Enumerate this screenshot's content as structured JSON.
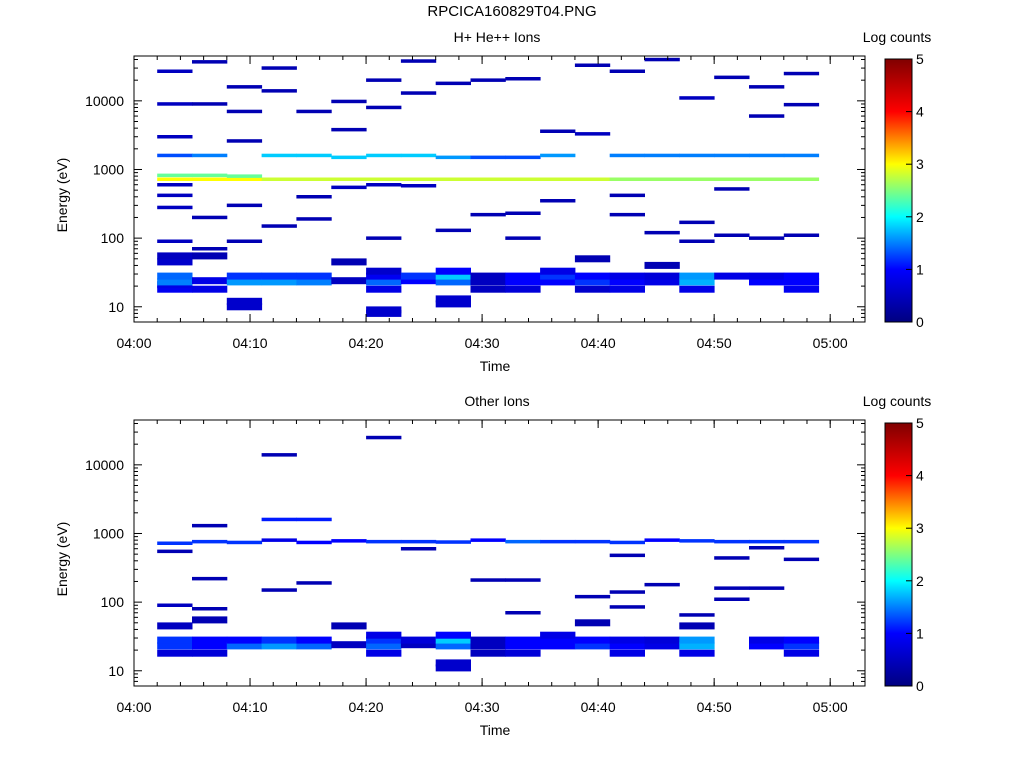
{
  "title": "RPCICA160829T04.PNG",
  "colorbar": {
    "label": "Log counts",
    "ticks": [
      "0",
      "1",
      "2",
      "3",
      "4",
      "5"
    ],
    "colors": [
      "#000080",
      "#0000ff",
      "#00ffff",
      "#ffff00",
      "#ff0000",
      "#800000"
    ]
  },
  "chart_data": [
    {
      "type": "heatmap",
      "title": "H+ He++ Ions",
      "xlabel": "Time",
      "ylabel": "Energy (eV)",
      "xticks": [
        "04:00",
        "04:10",
        "04:20",
        "04:30",
        "04:40",
        "04:50",
        "05:00"
      ],
      "xlim_minutes": [
        0,
        63
      ],
      "yticks": [
        "10",
        "100",
        "1000",
        "10000"
      ],
      "ylim": [
        6,
        45000
      ],
      "yscale": "log",
      "clim": [
        0,
        5
      ],
      "cells": [
        [
          2,
          18,
          0.9
        ],
        [
          2,
          21,
          0.8
        ],
        [
          2,
          23,
          1.5
        ],
        [
          2,
          28,
          1.4
        ],
        [
          2,
          45,
          0.6
        ],
        [
          2,
          55,
          0.5
        ],
        [
          2,
          90,
          0.5
        ],
        [
          2,
          280,
          0.5
        ],
        [
          2,
          420,
          0.5
        ],
        [
          2,
          600,
          0.5
        ],
        [
          2,
          720,
          3.0
        ],
        [
          2,
          820,
          2.4
        ],
        [
          2,
          1600,
          1.3
        ],
        [
          2,
          3000,
          0.5
        ],
        [
          2,
          9000,
          0.5
        ],
        [
          2,
          27000,
          0.5
        ],
        [
          5,
          18,
          0.8
        ],
        [
          5,
          24,
          0.8
        ],
        [
          5,
          55,
          0.4
        ],
        [
          5,
          70,
          0.4
        ],
        [
          5,
          200,
          0.4
        ],
        [
          5,
          720,
          3.0
        ],
        [
          5,
          820,
          2.4
        ],
        [
          5,
          1600,
          1.5
        ],
        [
          5,
          9000,
          0.4
        ],
        [
          5,
          37000,
          0.4
        ],
        [
          8,
          10,
          0.6
        ],
        [
          8,
          12,
          0.6
        ],
        [
          8,
          23,
          1.6
        ],
        [
          8,
          28,
          1.2
        ],
        [
          8,
          90,
          0.4
        ],
        [
          8,
          300,
          0.4
        ],
        [
          8,
          720,
          3.0
        ],
        [
          8,
          800,
          2.4
        ],
        [
          8,
          2600,
          0.4
        ],
        [
          8,
          7000,
          0.4
        ],
        [
          8,
          16000,
          0.4
        ],
        [
          11,
          23,
          1.6
        ],
        [
          11,
          28,
          1.2
        ],
        [
          11,
          150,
          0.4
        ],
        [
          11,
          720,
          2.8
        ],
        [
          11,
          1600,
          1.8
        ],
        [
          11,
          14000,
          0.4
        ],
        [
          11,
          30000,
          0.4
        ],
        [
          14,
          23,
          1.5
        ],
        [
          14,
          28,
          1.2
        ],
        [
          14,
          190,
          0.4
        ],
        [
          14,
          400,
          0.4
        ],
        [
          14,
          720,
          2.8
        ],
        [
          14,
          1600,
          1.8
        ],
        [
          14,
          7000,
          0.4
        ],
        [
          17,
          24,
          0.5
        ],
        [
          17,
          45,
          0.4
        ],
        [
          17,
          550,
          0.5
        ],
        [
          17,
          720,
          2.8
        ],
        [
          17,
          1500,
          1.8
        ],
        [
          17,
          3800,
          0.4
        ],
        [
          17,
          9800,
          0.4
        ],
        [
          20,
          8,
          0.6
        ],
        [
          20,
          9,
          0.6
        ],
        [
          20,
          18,
          0.8
        ],
        [
          20,
          23,
          1.4
        ],
        [
          20,
          28,
          0.9
        ],
        [
          20,
          33,
          0.6
        ],
        [
          20,
          100,
          0.4
        ],
        [
          20,
          600,
          0.5
        ],
        [
          20,
          720,
          2.8
        ],
        [
          20,
          1600,
          1.8
        ],
        [
          20,
          8000,
          0.4
        ],
        [
          20,
          20000,
          0.4
        ],
        [
          23,
          24,
          1.0
        ],
        [
          23,
          28,
          1.2
        ],
        [
          23,
          580,
          0.5
        ],
        [
          23,
          720,
          2.8
        ],
        [
          23,
          1600,
          1.8
        ],
        [
          23,
          13000,
          0.4
        ],
        [
          23,
          38000,
          0.4
        ],
        [
          26,
          11,
          0.6
        ],
        [
          26,
          13,
          0.6
        ],
        [
          26,
          23,
          1.4
        ],
        [
          26,
          28,
          1.8
        ],
        [
          26,
          33,
          1.0
        ],
        [
          26,
          130,
          0.4
        ],
        [
          26,
          720,
          2.8
        ],
        [
          26,
          1500,
          1.6
        ],
        [
          26,
          18000,
          0.4
        ],
        [
          29,
          18,
          0.5
        ],
        [
          29,
          23,
          0.5
        ],
        [
          29,
          28,
          0.5
        ],
        [
          29,
          220,
          0.4
        ],
        [
          29,
          720,
          2.8
        ],
        [
          29,
          1500,
          1.3
        ],
        [
          29,
          20000,
          0.4
        ],
        [
          32,
          18,
          0.7
        ],
        [
          32,
          23,
          1.0
        ],
        [
          32,
          28,
          1.0
        ],
        [
          32,
          100,
          0.4
        ],
        [
          32,
          230,
          0.4
        ],
        [
          32,
          720,
          2.8
        ],
        [
          32,
          1500,
          1.3
        ],
        [
          32,
          21000,
          0.4
        ],
        [
          35,
          23,
          1.0
        ],
        [
          35,
          28,
          1.2
        ],
        [
          35,
          33,
          0.8
        ],
        [
          35,
          350,
          0.4
        ],
        [
          35,
          720,
          2.8
        ],
        [
          35,
          1600,
          1.6
        ],
        [
          35,
          3600,
          0.4
        ],
        [
          38,
          18,
          0.6
        ],
        [
          38,
          23,
          1.2
        ],
        [
          38,
          28,
          1.0
        ],
        [
          38,
          50,
          0.4
        ],
        [
          38,
          720,
          2.8
        ],
        [
          38,
          3300,
          0.5
        ],
        [
          38,
          33000,
          0.4
        ],
        [
          41,
          18,
          0.8
        ],
        [
          41,
          23,
          1.0
        ],
        [
          41,
          28,
          0.8
        ],
        [
          41,
          220,
          0.4
        ],
        [
          41,
          420,
          0.4
        ],
        [
          41,
          720,
          2.6
        ],
        [
          41,
          1600,
          1.5
        ],
        [
          41,
          27000,
          0.4
        ],
        [
          44,
          23,
          0.8
        ],
        [
          44,
          28,
          0.7
        ],
        [
          44,
          40,
          0.4
        ],
        [
          44,
          120,
          0.4
        ],
        [
          44,
          720,
          2.6
        ],
        [
          44,
          1600,
          1.5
        ],
        [
          44,
          40000,
          0.4
        ],
        [
          47,
          18,
          0.8
        ],
        [
          47,
          23,
          1.7
        ],
        [
          47,
          28,
          1.6
        ],
        [
          47,
          90,
          0.4
        ],
        [
          47,
          170,
          0.4
        ],
        [
          47,
          720,
          2.6
        ],
        [
          47,
          1600,
          1.5
        ],
        [
          47,
          11000,
          0.5
        ],
        [
          50,
          28,
          0.8
        ],
        [
          50,
          110,
          0.4
        ],
        [
          50,
          520,
          0.4
        ],
        [
          50,
          720,
          2.6
        ],
        [
          50,
          1600,
          1.5
        ],
        [
          50,
          22000,
          0.4
        ],
        [
          53,
          23,
          1.0
        ],
        [
          53,
          28,
          0.8
        ],
        [
          53,
          100,
          0.4
        ],
        [
          53,
          720,
          2.6
        ],
        [
          53,
          1600,
          1.5
        ],
        [
          53,
          6000,
          0.4
        ],
        [
          53,
          16000,
          0.4
        ],
        [
          56,
          18,
          0.9
        ],
        [
          56,
          23,
          1.0
        ],
        [
          56,
          28,
          1.0
        ],
        [
          56,
          110,
          0.4
        ],
        [
          56,
          720,
          2.6
        ],
        [
          56,
          1600,
          1.5
        ],
        [
          56,
          8800,
          0.4
        ],
        [
          56,
          25000,
          0.4
        ]
      ]
    },
    {
      "type": "heatmap",
      "title": "Other Ions",
      "xlabel": "Time",
      "ylabel": "Energy (eV)",
      "xticks": [
        "04:00",
        "04:10",
        "04:20",
        "04:30",
        "04:40",
        "04:50",
        "05:00"
      ],
      "xlim_minutes": [
        0,
        63
      ],
      "yticks": [
        "10",
        "100",
        "1000",
        "10000"
      ],
      "ylim": [
        6,
        45000
      ],
      "yscale": "log",
      "clim": [
        0,
        5
      ],
      "cells": [
        [
          2,
          18,
          0.7
        ],
        [
          2,
          23,
          1.2
        ],
        [
          2,
          28,
          1.2
        ],
        [
          2,
          45,
          0.5
        ],
        [
          2,
          90,
          0.5
        ],
        [
          2,
          550,
          0.4
        ],
        [
          2,
          720,
          1.2
        ],
        [
          5,
          18,
          0.7
        ],
        [
          5,
          23,
          1.0
        ],
        [
          5,
          28,
          1.0
        ],
        [
          5,
          55,
          0.4
        ],
        [
          5,
          80,
          0.4
        ],
        [
          5,
          220,
          0.4
        ],
        [
          5,
          1300,
          0.4
        ],
        [
          5,
          760,
          1.2
        ],
        [
          8,
          23,
          1.4
        ],
        [
          8,
          28,
          1.0
        ],
        [
          8,
          740,
          1.2
        ],
        [
          11,
          23,
          1.6
        ],
        [
          11,
          28,
          1.2
        ],
        [
          11,
          150,
          0.4
        ],
        [
          11,
          800,
          0.8
        ],
        [
          11,
          1600,
          1.1
        ],
        [
          11,
          14000,
          0.4
        ],
        [
          14,
          23,
          1.4
        ],
        [
          14,
          28,
          1.0
        ],
        [
          14,
          190,
          0.4
        ],
        [
          14,
          740,
          1.0
        ],
        [
          14,
          1600,
          1.1
        ],
        [
          17,
          24,
          0.5
        ],
        [
          17,
          45,
          0.4
        ],
        [
          17,
          780,
          1.0
        ],
        [
          20,
          18,
          0.8
        ],
        [
          20,
          23,
          1.4
        ],
        [
          20,
          28,
          1.2
        ],
        [
          20,
          33,
          0.8
        ],
        [
          20,
          760,
          1.2
        ],
        [
          20,
          25000,
          0.4
        ],
        [
          23,
          24,
          0.5
        ],
        [
          23,
          28,
          0.7
        ],
        [
          23,
          600,
          0.4
        ],
        [
          23,
          760,
          1.2
        ],
        [
          26,
          11,
          0.6
        ],
        [
          26,
          13,
          0.6
        ],
        [
          26,
          23,
          1.4
        ],
        [
          26,
          28,
          1.8
        ],
        [
          26,
          33,
          1.0
        ],
        [
          26,
          750,
          1.2
        ],
        [
          29,
          18,
          0.5
        ],
        [
          29,
          23,
          0.5
        ],
        [
          29,
          28,
          0.5
        ],
        [
          29,
          210,
          0.4
        ],
        [
          29,
          800,
          1.0
        ],
        [
          32,
          18,
          0.7
        ],
        [
          32,
          23,
          1.0
        ],
        [
          32,
          28,
          1.0
        ],
        [
          32,
          70,
          0.4
        ],
        [
          32,
          210,
          0.4
        ],
        [
          32,
          760,
          1.4
        ],
        [
          35,
          23,
          1.0
        ],
        [
          35,
          28,
          1.0
        ],
        [
          35,
          33,
          0.8
        ],
        [
          35,
          760,
          1.2
        ],
        [
          38,
          23,
          1.2
        ],
        [
          38,
          28,
          1.0
        ],
        [
          38,
          50,
          0.4
        ],
        [
          38,
          120,
          0.4
        ],
        [
          38,
          760,
          1.2
        ],
        [
          41,
          18,
          0.8
        ],
        [
          41,
          23,
          1.0
        ],
        [
          41,
          28,
          0.8
        ],
        [
          41,
          85,
          0.4
        ],
        [
          41,
          140,
          0.4
        ],
        [
          41,
          480,
          0.4
        ],
        [
          41,
          740,
          1.2
        ],
        [
          44,
          23,
          0.8
        ],
        [
          44,
          28,
          0.7
        ],
        [
          44,
          180,
          0.4
        ],
        [
          44,
          800,
          1.0
        ],
        [
          47,
          18,
          0.8
        ],
        [
          47,
          23,
          1.7
        ],
        [
          47,
          28,
          1.6
        ],
        [
          47,
          45,
          0.4
        ],
        [
          47,
          65,
          0.4
        ],
        [
          47,
          780,
          1.2
        ],
        [
          50,
          110,
          0.4
        ],
        [
          50,
          160,
          0.4
        ],
        [
          50,
          440,
          0.4
        ],
        [
          50,
          760,
          1.2
        ],
        [
          53,
          23,
          1.0
        ],
        [
          53,
          28,
          0.8
        ],
        [
          53,
          160,
          0.4
        ],
        [
          53,
          620,
          0.4
        ],
        [
          53,
          760,
          1.2
        ],
        [
          56,
          18,
          0.8
        ],
        [
          56,
          23,
          1.2
        ],
        [
          56,
          28,
          1.0
        ],
        [
          56,
          420,
          0.4
        ],
        [
          56,
          760,
          1.2
        ]
      ]
    }
  ]
}
